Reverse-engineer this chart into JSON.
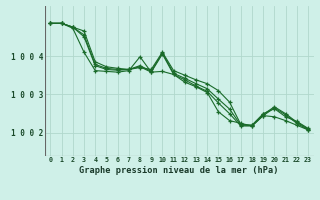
{
  "background_color": "#cff0e8",
  "grid_color": "#b0d8cc",
  "line_color": "#1a6b2a",
  "marker_color": "#1a6b2a",
  "xlabel": "Graphe pression niveau de la mer (hPa)",
  "xlim": [
    -0.5,
    23.5
  ],
  "ylim": [
    1001.4,
    1005.3
  ],
  "yticks": [
    1002,
    1003,
    1004
  ],
  "ytick_labels": [
    "1 0 0 2",
    "1 0 0 3",
    "1 0 0 4"
  ],
  "xticks": [
    0,
    1,
    2,
    3,
    4,
    5,
    6,
    7,
    8,
    9,
    10,
    11,
    12,
    13,
    14,
    15,
    16,
    17,
    18,
    19,
    20,
    21,
    22,
    23
  ],
  "series": [
    [
      1004.85,
      1004.85,
      1004.75,
      1004.65,
      1003.85,
      1003.72,
      1003.68,
      1003.65,
      1003.7,
      1003.65,
      1004.1,
      1003.62,
      1003.5,
      1003.38,
      1003.28,
      1003.1,
      1002.8,
      1002.22,
      1002.2,
      1002.5,
      1002.63,
      1002.42,
      1002.3,
      1002.12
    ],
    [
      1004.85,
      1004.85,
      1004.75,
      1004.55,
      1003.78,
      1003.68,
      1003.65,
      1003.65,
      1003.75,
      1003.6,
      1004.08,
      1003.55,
      1003.42,
      1003.28,
      1003.15,
      1002.88,
      1002.62,
      1002.2,
      1002.2,
      1002.48,
      1002.68,
      1002.5,
      1002.28,
      1002.1
    ],
    [
      1004.85,
      1004.85,
      1004.75,
      1004.5,
      1003.75,
      1003.65,
      1003.63,
      1003.65,
      1003.72,
      1003.58,
      1004.05,
      1003.52,
      1003.38,
      1003.22,
      1003.08,
      1002.78,
      1002.5,
      1002.18,
      1002.18,
      1002.45,
      1002.65,
      1002.47,
      1002.25,
      1002.08
    ],
    [
      1004.85,
      1004.85,
      1004.72,
      1004.1,
      1003.62,
      1003.6,
      1003.58,
      1003.62,
      1003.98,
      1003.58,
      1003.6,
      1003.52,
      1003.32,
      1003.2,
      1003.05,
      1002.55,
      1002.32,
      1002.25,
      1002.18,
      1002.45,
      1002.42,
      1002.32,
      1002.2,
      1002.08
    ]
  ]
}
